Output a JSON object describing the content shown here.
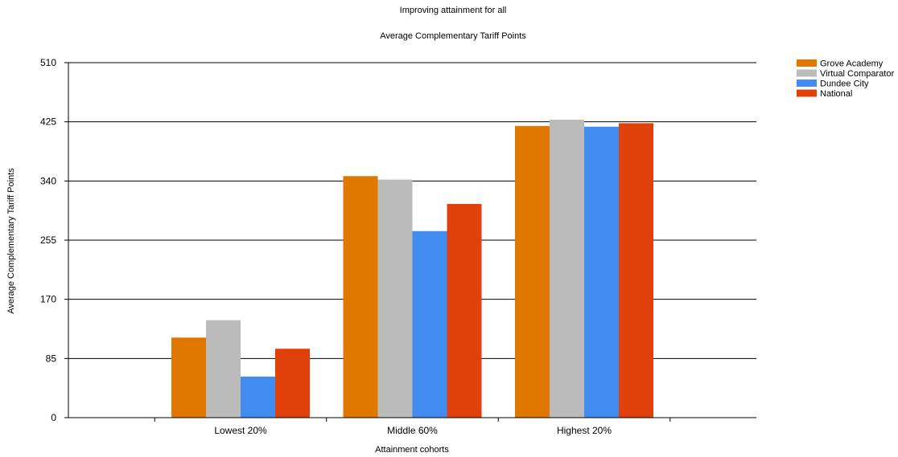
{
  "chart_data": {
    "type": "bar",
    "title": "Improving attainment for all",
    "subtitle": "Average Complementary Tariff Points",
    "xlabel": "Attainment cohorts",
    "ylabel": "Average Complementary Tariff Points",
    "ylim": [
      0,
      510
    ],
    "yticks": [
      0,
      85,
      170,
      255,
      340,
      425,
      510
    ],
    "grid": true,
    "legend_position": "top-right",
    "categories": [
      "Lowest 20%",
      "Middle 60%",
      "Highest 20%"
    ],
    "series": [
      {
        "name": "Grove Academy",
        "color": "#e07800",
        "values": [
          115,
          347,
          419
        ]
      },
      {
        "name": "Virtual Comparator",
        "color": "#bbbbbb",
        "values": [
          140,
          342,
          428
        ]
      },
      {
        "name": "Dundee City",
        "color": "#418cf0",
        "values": [
          59,
          268,
          418
        ]
      },
      {
        "name": "National",
        "color": "#e0400a",
        "values": [
          99,
          307,
          423
        ]
      }
    ]
  }
}
